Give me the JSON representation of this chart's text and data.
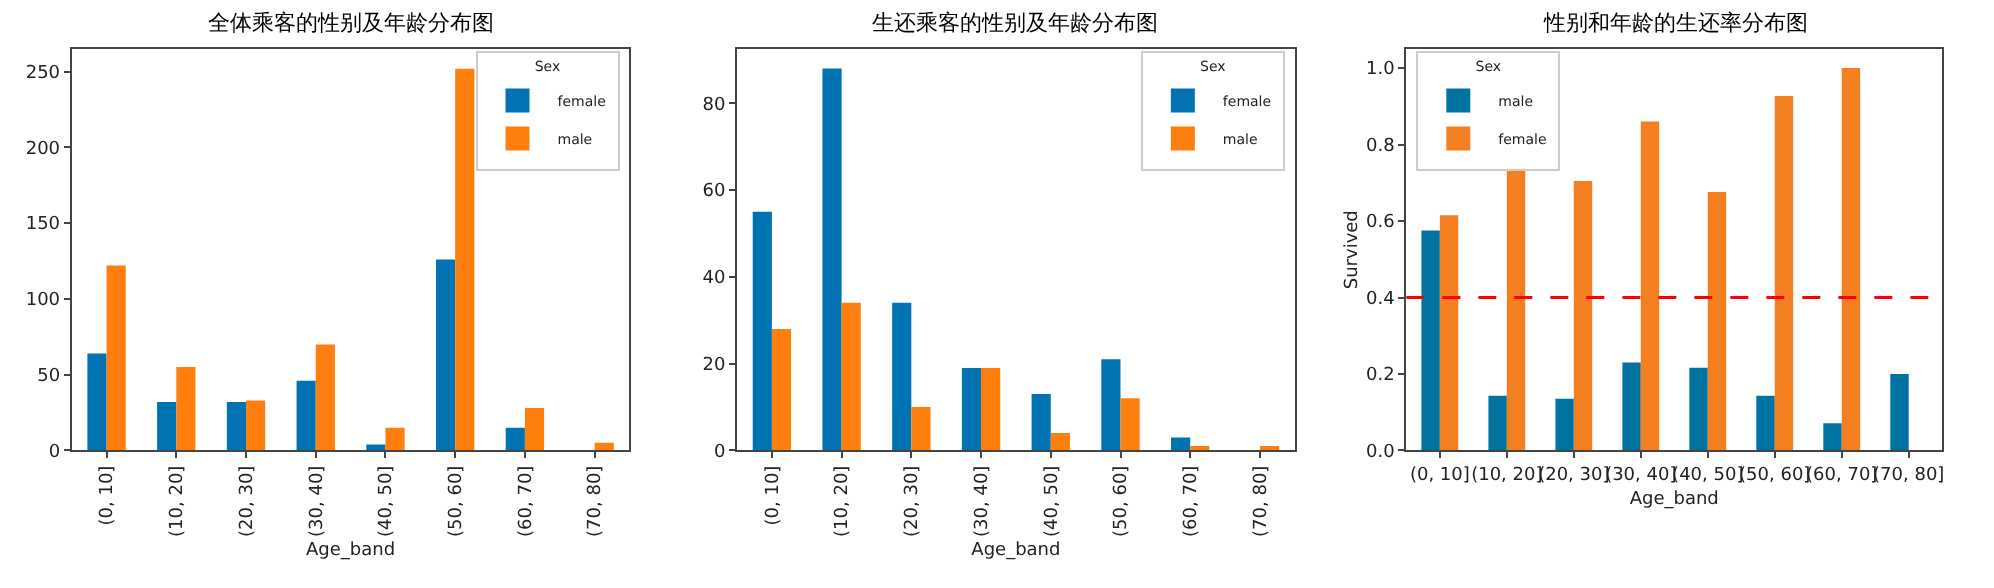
{
  "chart_data": [
    {
      "type": "bar",
      "title": "全体乘客的性别及年龄分布图",
      "xlabel": "Age_band",
      "legend_title": "Sex",
      "legend": "top right",
      "categories": [
        "(0, 10]",
        "(10, 20]",
        "(20, 30]",
        "(30, 40]",
        "(40, 50]",
        "(50, 60]",
        "(60, 70]",
        "(70, 80]"
      ],
      "series": [
        {
          "name": "female",
          "color": "#0173b2",
          "values": [
            64,
            32,
            32,
            46,
            4,
            126,
            15,
            null
          ]
        },
        {
          "name": "male",
          "color": "#ff7f0e",
          "values": [
            122,
            55,
            33,
            70,
            15,
            252,
            28,
            5
          ]
        }
      ],
      "ylim": [
        0,
        265
      ],
      "yticks": [
        0,
        50,
        100,
        150,
        200,
        250
      ]
    },
    {
      "type": "bar",
      "title": "生还乘客的性别及年龄分布图",
      "xlabel": "Age_band",
      "legend_title": "Sex",
      "legend": "top right",
      "categories": [
        "(0, 10]",
        "(10, 20]",
        "(20, 30]",
        "(30, 40]",
        "(40, 50]",
        "(50, 60]",
        "(60, 70]",
        "(70, 80]"
      ],
      "series": [
        {
          "name": "female",
          "color": "#0173b2",
          "values": [
            55,
            88,
            34,
            19,
            13,
            21,
            3,
            null
          ]
        },
        {
          "name": "male",
          "color": "#ff7f0e",
          "values": [
            28,
            34,
            10,
            19,
            4,
            12,
            1,
            1
          ]
        }
      ],
      "ylim": [
        0,
        92.5
      ],
      "yticks": [
        0,
        20,
        40,
        60,
        80
      ]
    },
    {
      "type": "bar",
      "title": "性别和年龄的生还率分布图",
      "xlabel": "Age_band",
      "ylabel": "Survived",
      "legend_title": "Sex",
      "legend": "top left",
      "categories": [
        "(0, 10]",
        "(10, 20]",
        "(20, 30]",
        "(30, 40]",
        "(40, 50]",
        "(50, 60]",
        "(60, 70]",
        "(70, 80]"
      ],
      "series": [
        {
          "name": "male",
          "color": "#0173a0",
          "values": [
            0.575,
            0.143,
            0.135,
            0.23,
            0.216,
            0.143,
            0.071,
            0.2
          ]
        },
        {
          "name": "female",
          "color": "#f47f20",
          "values": [
            0.615,
            0.738,
            0.705,
            0.86,
            0.676,
            0.927,
            1.0,
            null
          ]
        }
      ],
      "ylim": [
        0,
        1.05
      ],
      "yticks": [
        {
          "value": 0,
          "label": "0.0"
        },
        {
          "value": 0.2,
          "label": "0.2"
        },
        {
          "value": 0.4,
          "label": "0.4"
        },
        {
          "value": 0.6,
          "label": "0.6"
        },
        {
          "value": 0.8,
          "label": "0.8"
        },
        {
          "value": 1.0,
          "label": "1.0"
        }
      ],
      "ref_lines": [
        {
          "axis": "y",
          "value": 0.4,
          "color": "#ff0000",
          "line_style": "dashed"
        }
      ]
    }
  ]
}
